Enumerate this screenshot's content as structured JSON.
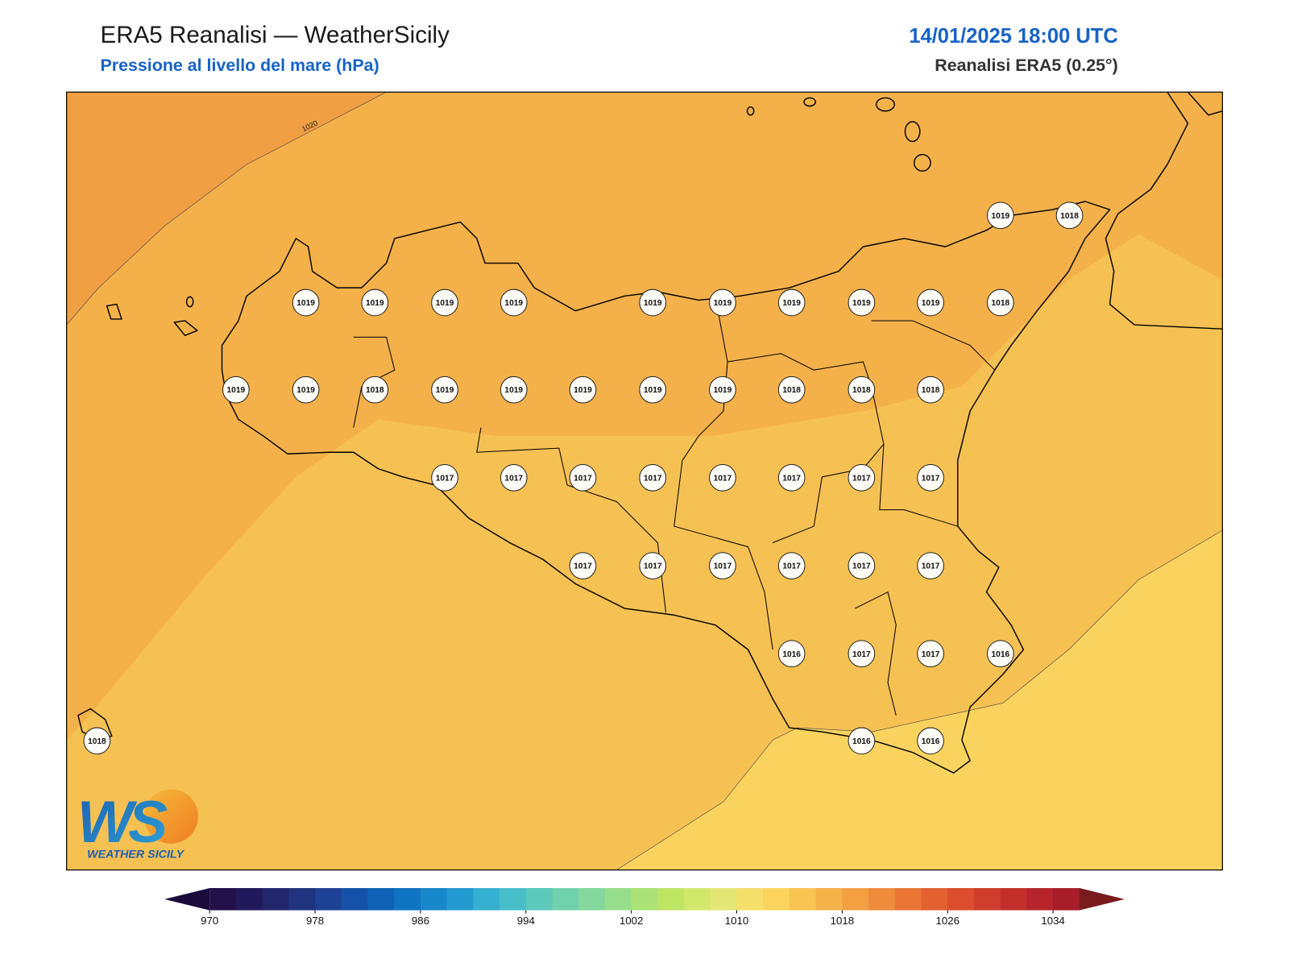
{
  "header": {
    "title": "ERA5 Reanalisi — WeatherSicily",
    "subtitle": "Pressione al livello del mare (hPa)",
    "datetime": "14/01/2025 18:00 UTC",
    "source": "Reanalisi ERA5 (0.25°)"
  },
  "map": {
    "contour_label": "1020",
    "stations": [
      1019,
      1018,
      1019,
      1019,
      1019,
      1019,
      1019,
      1019,
      1019,
      1019,
      1019,
      1018,
      1019,
      1019,
      1018,
      1019,
      1019,
      1019,
      1019,
      1019,
      1018,
      1018,
      1018,
      1017,
      1017,
      1017,
      1017,
      1017,
      1017,
      1017,
      1017,
      1017,
      1017,
      1017,
      1017,
      1017,
      1017,
      1016,
      1017,
      1017,
      1016,
      1018,
      1016,
      1016
    ]
  },
  "colorbar": {
    "range": [
      970,
      1036
    ],
    "ticks": [
      970,
      978,
      986,
      994,
      1002,
      1010,
      1018,
      1026,
      1034
    ],
    "colors": [
      "#21104a",
      "#22195a",
      "#22266c",
      "#21337f",
      "#1d4193",
      "#1651a8",
      "#0f62b6",
      "#0f74c2",
      "#1888cb",
      "#239bd0",
      "#36b0d0",
      "#48bfc8",
      "#5cc9bb",
      "#70d1ad",
      "#84d89e",
      "#97de8c",
      "#abe277",
      "#bfe565",
      "#d2e86b",
      "#e3e775",
      "#f4e06b",
      "#fad45c",
      "#f8c452",
      "#f6b24a",
      "#f39f42",
      "#ef8c3c",
      "#ea7535",
      "#e36131",
      "#da4e2d",
      "#cf3e2c",
      "#c3302c",
      "#b5252b",
      "#a81d2a"
    ],
    "under_color": "#1a0b3c",
    "over_color": "#7a1b1e"
  },
  "logo": {
    "mark": "WS",
    "text": "WEATHER SICILY"
  }
}
